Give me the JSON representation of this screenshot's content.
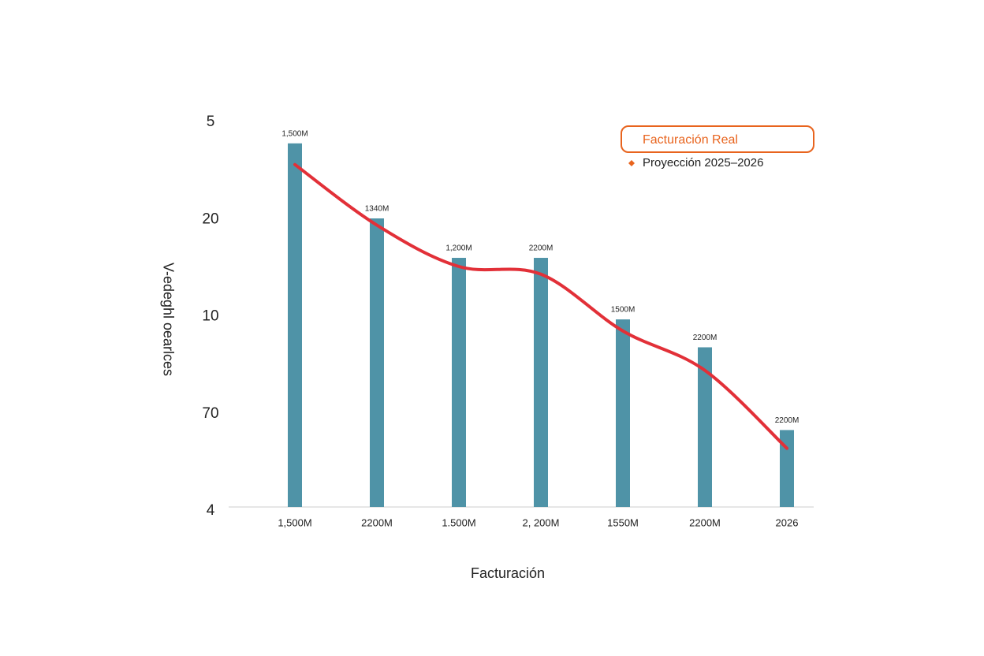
{
  "chart_data": {
    "type": "bar",
    "y_axis_title": "V-edeghl oearlces",
    "x_axis_title": "Facturación",
    "y_axis_labels": [
      "5",
      "20",
      "10",
      "70",
      "4"
    ],
    "categories": [
      "1,500M",
      "2200M",
      "1.500M",
      "2, 200M",
      "1550M",
      "2200M",
      "2026"
    ],
    "ylim": [
      0,
      4
    ],
    "series": [
      {
        "name": "Facturación Real",
        "type": "bar",
        "color": "#4f93a7",
        "values": [
          3.78,
          3.0,
          2.59,
          2.59,
          1.95,
          1.66,
          0.8
        ]
      },
      {
        "name": "Proyección 2025–2026",
        "type": "line",
        "color": "#e23038",
        "values": [
          3.56,
          2.93,
          2.5,
          2.42,
          1.83,
          1.42,
          0.61
        ]
      }
    ],
    "bar_annotations": [
      "1,500M",
      "1340M",
      "1,200M",
      "2200M",
      "1500M",
      "2200M",
      "2200M"
    ],
    "legend_position": "upper right",
    "legend_color": "#e8641e"
  }
}
